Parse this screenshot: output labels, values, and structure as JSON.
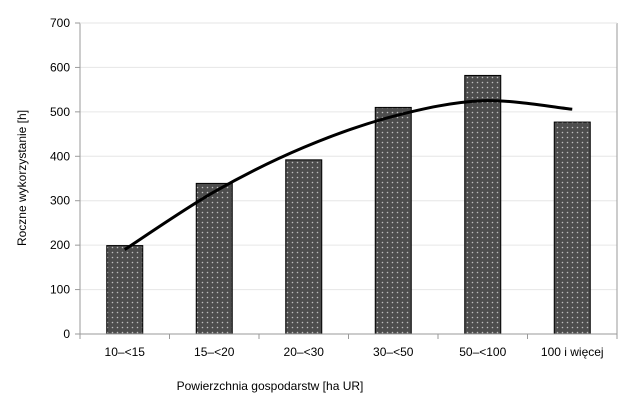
{
  "chart_data": {
    "type": "bar",
    "xlabel": "Powierzchnia gospodarstw [ha UR]",
    "ylabel": "Roczne wykorzystanie [h]",
    "categories": [
      "10–<15",
      "15–<20",
      "20–<30",
      "30–<50",
      "50–<100",
      "100 i więcej"
    ],
    "values": [
      199,
      339,
      392,
      510,
      582,
      477
    ],
    "ylim": [
      0,
      700
    ],
    "yticks": [
      "0",
      "100",
      "200",
      "300",
      "400",
      "500",
      "600",
      "700"
    ],
    "trendline": {
      "type": "polynomial",
      "values": [
        190,
        320,
        420,
        490,
        525,
        506
      ]
    },
    "grid": true,
    "legend": "none",
    "colors": {
      "bar_fill": "#4d4d4d",
      "bar_dots": "#bdbdbd",
      "trend": "#000000",
      "grid": "#e6e6e6",
      "axis": "#9a9a9a"
    }
  }
}
